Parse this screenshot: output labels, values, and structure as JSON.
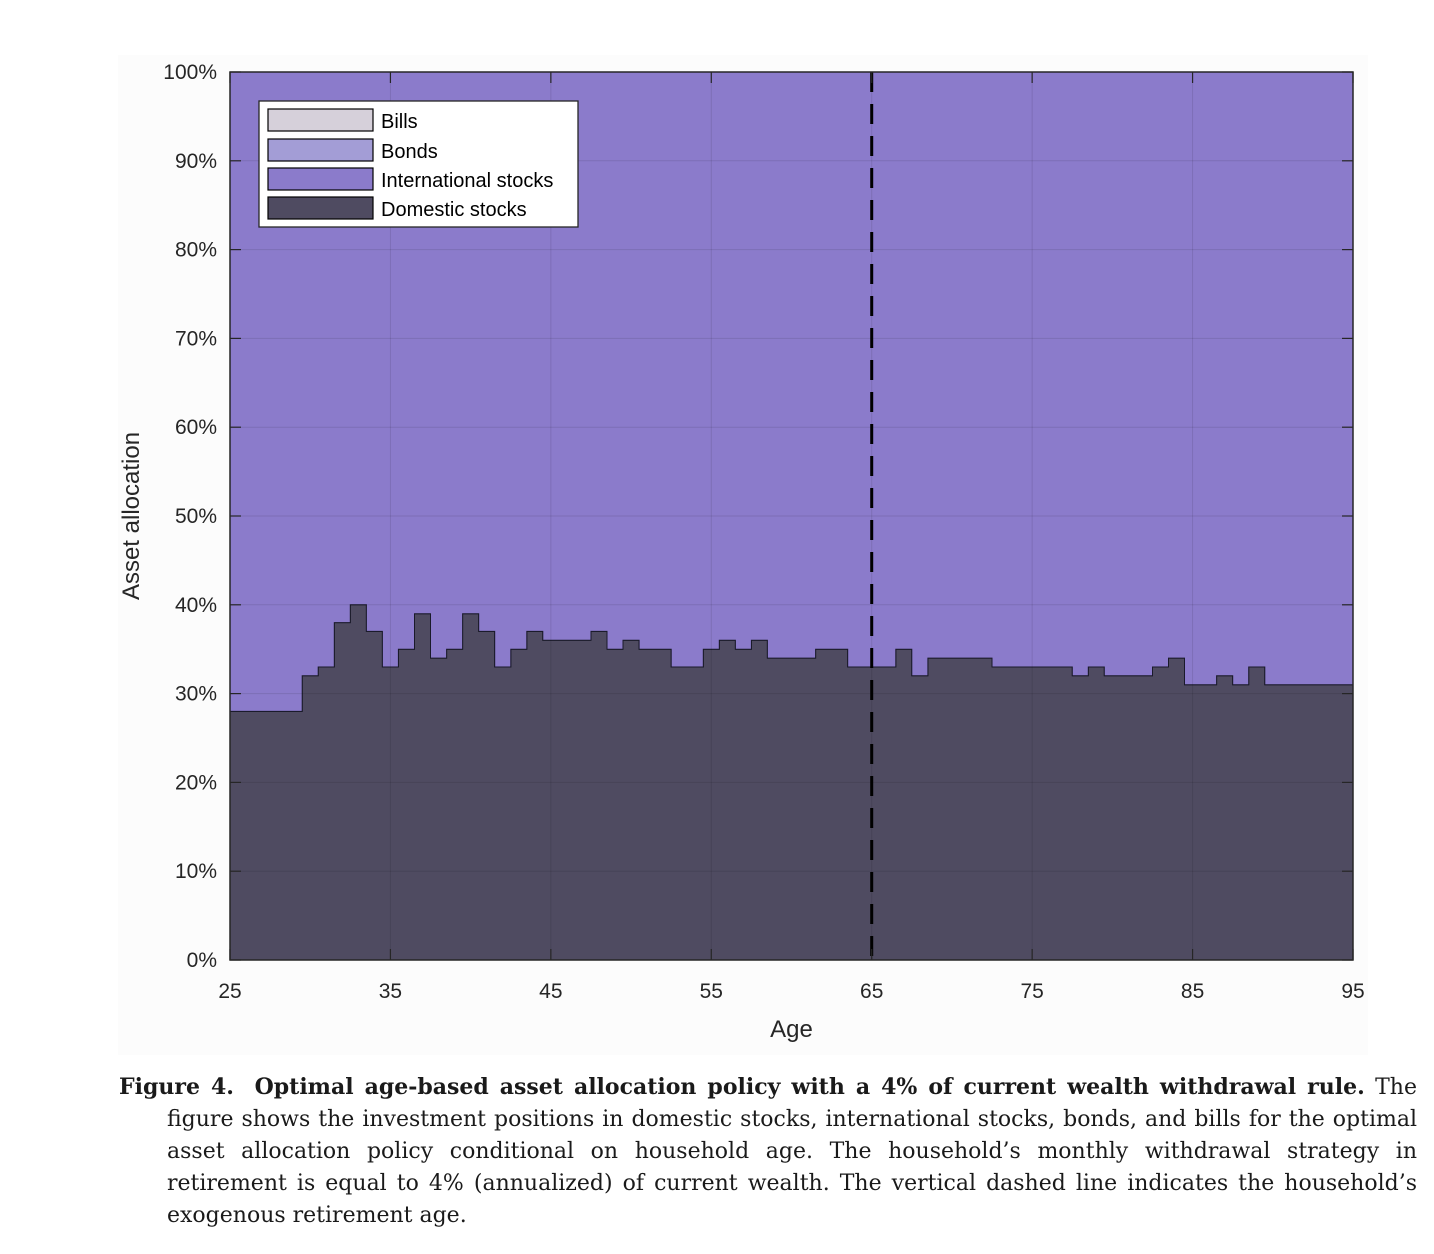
{
  "chart_data": {
    "type": "area",
    "stacked": true,
    "xlabel": "Age",
    "ylabel": "Asset allocation",
    "xlim": [
      25,
      95
    ],
    "ylim": [
      0,
      100
    ],
    "x_ticks": [
      25,
      35,
      45,
      55,
      65,
      75,
      85,
      95
    ],
    "y_ticks": [
      0,
      10,
      20,
      30,
      40,
      50,
      60,
      70,
      80,
      90,
      100
    ],
    "y_tick_labels": [
      "0%",
      "10%",
      "20%",
      "30%",
      "40%",
      "50%",
      "60%",
      "70%",
      "80%",
      "90%",
      "100%"
    ],
    "grid": true,
    "legend_position": "top-left",
    "legend": [
      "Bills",
      "Bonds",
      "International stocks",
      "Domestic stocks"
    ],
    "colors": {
      "Bills": "#d6d0da",
      "Bonds": "#a39dd6",
      "International stocks": "#8b7bcb",
      "Domestic stocks": "#4f4b61"
    },
    "vertical_line": {
      "x": 65,
      "style": "dashed",
      "color": "#000000"
    },
    "x": [
      25,
      26,
      27,
      28,
      29,
      30,
      31,
      32,
      33,
      34,
      35,
      36,
      37,
      38,
      39,
      40,
      41,
      42,
      43,
      44,
      45,
      46,
      47,
      48,
      49,
      50,
      51,
      52,
      53,
      54,
      55,
      56,
      57,
      58,
      59,
      60,
      61,
      62,
      63,
      64,
      65,
      66,
      67,
      68,
      69,
      70,
      71,
      72,
      73,
      74,
      75,
      76,
      77,
      78,
      79,
      80,
      81,
      82,
      83,
      84,
      85,
      86,
      87,
      88,
      89,
      90,
      91,
      92,
      93,
      94,
      95
    ],
    "series": [
      {
        "name": "Domestic stocks",
        "values": [
          28,
          28,
          28,
          28,
          28,
          32,
          33,
          38,
          40,
          37,
          33,
          35,
          39,
          34,
          35,
          39,
          37,
          33,
          35,
          37,
          36,
          36,
          36,
          37,
          35,
          36,
          35,
          35,
          33,
          33,
          35,
          36,
          35,
          36,
          34,
          34,
          34,
          35,
          35,
          33,
          33,
          33,
          35,
          32,
          34,
          34,
          34,
          34,
          33,
          33,
          33,
          33,
          33,
          32,
          33,
          32,
          32,
          32,
          33,
          34,
          31,
          31,
          32,
          31,
          33,
          31,
          31,
          31,
          31,
          31,
          31
        ]
      },
      {
        "name": "International stocks",
        "values": [
          72,
          72,
          72,
          72,
          72,
          68,
          67,
          62,
          60,
          63,
          67,
          65,
          61,
          66,
          65,
          61,
          63,
          67,
          65,
          63,
          64,
          64,
          64,
          63,
          65,
          64,
          65,
          65,
          67,
          67,
          65,
          64,
          65,
          64,
          66,
          66,
          66,
          65,
          65,
          67,
          67,
          67,
          65,
          68,
          66,
          66,
          66,
          66,
          67,
          67,
          67,
          67,
          67,
          68,
          67,
          68,
          68,
          68,
          67,
          66,
          69,
          69,
          68,
          69,
          67,
          69,
          69,
          69,
          69,
          69,
          69
        ]
      },
      {
        "name": "Bonds",
        "values": [
          0,
          0,
          0,
          0,
          0,
          0,
          0,
          0,
          0,
          0,
          0,
          0,
          0,
          0,
          0,
          0,
          0,
          0,
          0,
          0,
          0,
          0,
          0,
          0,
          0,
          0,
          0,
          0,
          0,
          0,
          0,
          0,
          0,
          0,
          0,
          0,
          0,
          0,
          0,
          0,
          0,
          0,
          0,
          0,
          0,
          0,
          0,
          0,
          0,
          0,
          0,
          0,
          0,
          0,
          0,
          0,
          0,
          0,
          0,
          0,
          0,
          0,
          0,
          0,
          0,
          0,
          0,
          0,
          0,
          0,
          0
        ]
      },
      {
        "name": "Bills",
        "values": [
          0,
          0,
          0,
          0,
          0,
          0,
          0,
          0,
          0,
          0,
          0,
          0,
          0,
          0,
          0,
          0,
          0,
          0,
          0,
          0,
          0,
          0,
          0,
          0,
          0,
          0,
          0,
          0,
          0,
          0,
          0,
          0,
          0,
          0,
          0,
          0,
          0,
          0,
          0,
          0,
          0,
          0,
          0,
          0,
          0,
          0,
          0,
          0,
          0,
          0,
          0,
          0,
          0,
          0,
          0,
          0,
          0,
          0,
          0,
          0,
          0,
          0,
          0,
          0,
          0,
          0,
          0,
          0,
          0,
          0,
          0
        ]
      }
    ]
  },
  "caption": {
    "label": "Figure 4.",
    "title": "Optimal age-based asset allocation policy with a 4% of current wealth withdrawal rule.",
    "text": "The figure shows the investment positions in domestic stocks, international stocks, bonds, and bills for the optimal asset allocation policy conditional on household age. The household’s monthly withdrawal strategy in retirement is equal to 4% (annualized) of current wealth. The vertical dashed line indicates the household’s exogenous retirement age."
  }
}
